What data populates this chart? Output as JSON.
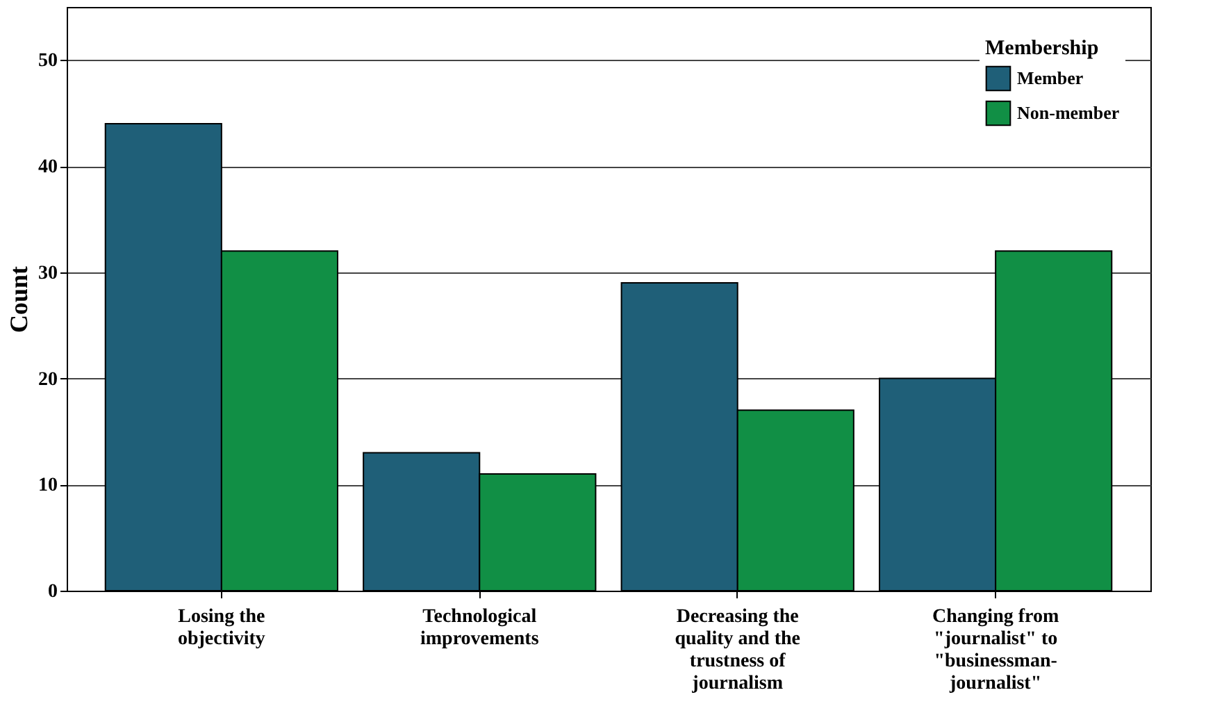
{
  "chart_data": {
    "type": "bar",
    "ylabel": "Count",
    "legend_title": "Membership",
    "categories": [
      "Losing the objectivity",
      "Technological improvements",
      "Decreasing the quality and the trustness of journalism",
      "Changing from \"journalist\" to \"businessman-journalist\""
    ],
    "series": [
      {
        "name": "Member",
        "color": "#1f5f78",
        "values": [
          44,
          13,
          29,
          20
        ]
      },
      {
        "name": "Non-member",
        "color": "#118f45",
        "values": [
          32,
          11,
          17,
          32
        ]
      }
    ],
    "ylim": [
      0,
      55
    ],
    "yticks": [
      0,
      10,
      20,
      30,
      40,
      50
    ],
    "grid": "y",
    "legend": "top right"
  }
}
